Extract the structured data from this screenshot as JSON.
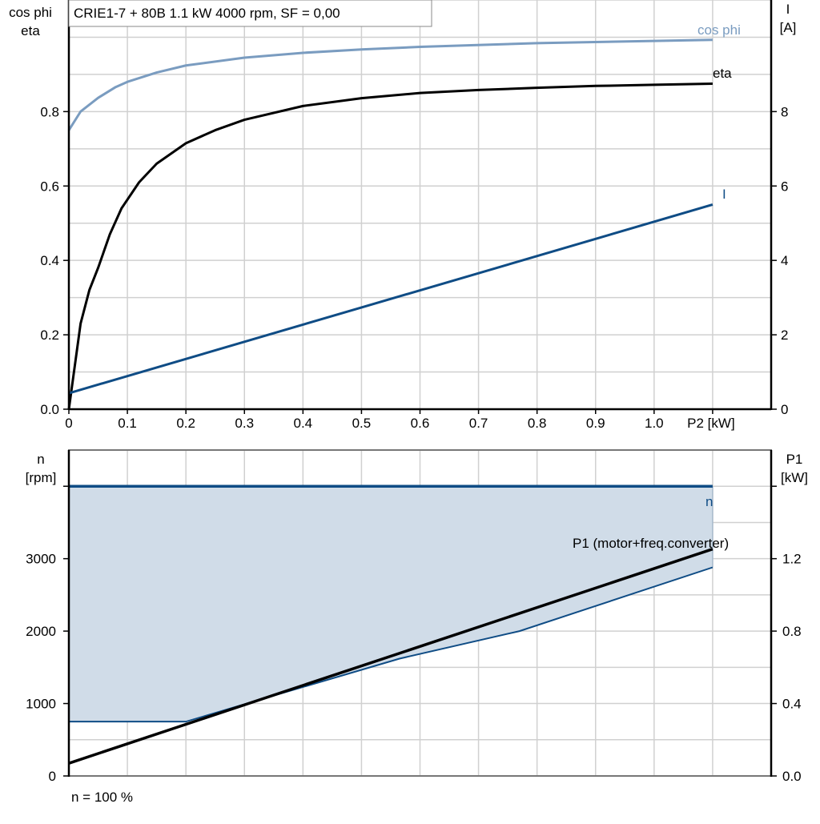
{
  "title": "CRIE1-7 + 80B   1.1 kW   4000 rpm, SF = 0,00",
  "footer_note": "n = 100 %",
  "colors": {
    "cos_phi": "#7a9cc0",
    "eta": "#000000",
    "current": "#0f4c85",
    "speed": "#0f4c85",
    "p1": "#000000",
    "fill": "#d0dce8",
    "grid": "#d0d0d0"
  },
  "chart_data": [
    {
      "type": "line",
      "xlabel": "P2 [kW]",
      "xlim": [
        0,
        1.2
      ],
      "x_ticks": [
        "0",
        "0.1",
        "0.2",
        "0.3",
        "0.4",
        "0.5",
        "0.6",
        "0.7",
        "0.8",
        "0.9",
        "1.0",
        "P2 [kW]"
      ],
      "ylabel_left": [
        "cos phi",
        "eta"
      ],
      "ylim_left": [
        0,
        1.1
      ],
      "y_ticks_left": [
        "0.0",
        "0.2",
        "0.4",
        "0.6",
        "0.8"
      ],
      "ylabel_right": [
        "I",
        "[A]"
      ],
      "ylim_right": [
        0,
        11
      ],
      "y_ticks_right": [
        "0",
        "2",
        "4",
        "6",
        "8"
      ],
      "grid": true,
      "series": [
        {
          "name": "cos phi",
          "axis": "left",
          "x": [
            0,
            0.02,
            0.05,
            0.08,
            0.1,
            0.15,
            0.2,
            0.3,
            0.4,
            0.5,
            0.6,
            0.8,
            1.0,
            1.1
          ],
          "y": [
            0.75,
            0.8,
            0.837,
            0.866,
            0.88,
            0.905,
            0.924,
            0.945,
            0.958,
            0.967,
            0.974,
            0.984,
            0.99,
            0.993
          ]
        },
        {
          "name": "eta",
          "axis": "left",
          "x": [
            0,
            0.02,
            0.035,
            0.05,
            0.07,
            0.09,
            0.12,
            0.15,
            0.2,
            0.25,
            0.3,
            0.4,
            0.5,
            0.6,
            0.7,
            0.8,
            0.9,
            1.0,
            1.1
          ],
          "y": [
            0,
            0.23,
            0.32,
            0.38,
            0.47,
            0.54,
            0.61,
            0.66,
            0.715,
            0.75,
            0.778,
            0.815,
            0.836,
            0.85,
            0.858,
            0.864,
            0.869,
            0.872,
            0.875
          ]
        },
        {
          "name": "I",
          "axis": "right",
          "x": [
            0,
            1.1
          ],
          "y": [
            0.43,
            5.5
          ]
        }
      ]
    },
    {
      "type": "area",
      "xlim": [
        0,
        1.2
      ],
      "ylabel_left": [
        "n",
        "[rpm]"
      ],
      "ylim_left": [
        0,
        4500
      ],
      "y_ticks_left": [
        "0",
        "1000",
        "2000",
        "3000"
      ],
      "ylabel_right": [
        "P1",
        "[kW]"
      ],
      "ylim_right": [
        0,
        1.8
      ],
      "y_ticks_right": [
        "0.0",
        "0.4",
        "0.8",
        "1.2"
      ],
      "grid": true,
      "series": [
        {
          "name": "n",
          "axis": "left",
          "x": [
            0,
            1.1
          ],
          "y": [
            4000,
            4000
          ]
        },
        {
          "axis": "left",
          "x": [
            0,
            0.2,
            0.3,
            0.565,
            0.77,
            1.1
          ],
          "y": [
            750,
            750,
            990,
            1620,
            2000,
            2880
          ]
        },
        {
          "name": "P1 (motor+freq.converter)",
          "axis": "right",
          "x": [
            0,
            1.1
          ],
          "y": [
            0.07,
            1.253
          ]
        }
      ]
    }
  ]
}
